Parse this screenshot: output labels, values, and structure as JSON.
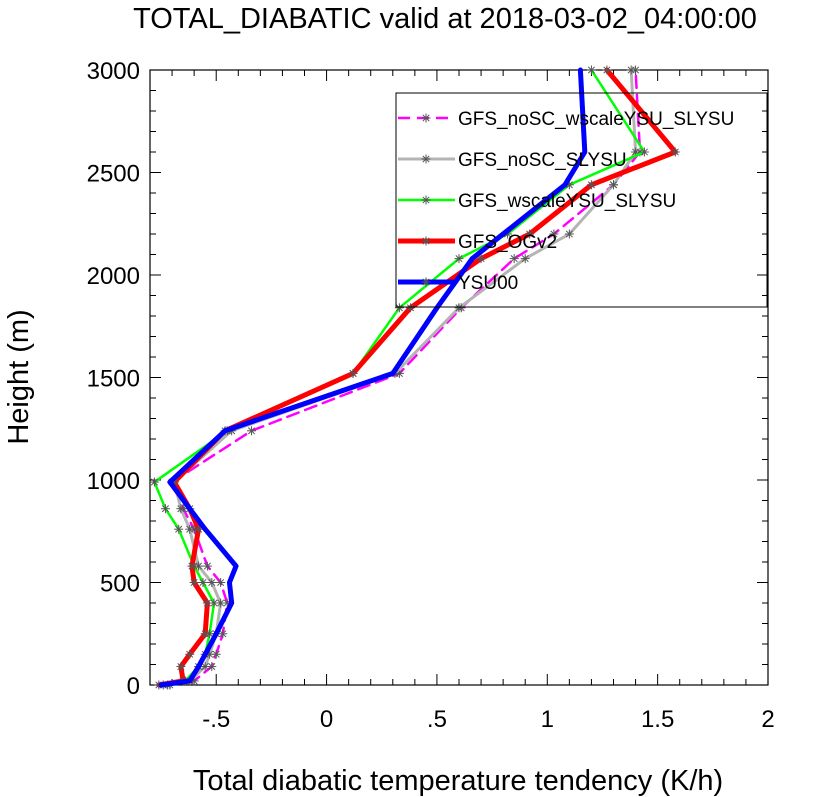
{
  "chart_data": {
    "type": "line",
    "title": "TOTAL_DIABATIC valid at 2018-03-02_04:00:00",
    "xlabel": "Total diabatic temperature tendency (K/h)",
    "ylabel": "Height (m)",
    "xlim": [
      -0.8,
      2.0
    ],
    "ylim": [
      0,
      3000
    ],
    "x_ticks": [
      -0.5,
      0,
      0.5,
      1,
      1.5,
      2
    ],
    "x_tick_labels": [
      "-.5",
      "0",
      ".5",
      "1",
      "1.5",
      "2"
    ],
    "y_ticks": [
      0,
      500,
      1000,
      1500,
      2000,
      2500,
      3000
    ],
    "y_tick_labels": [
      "0",
      "500",
      "1000",
      "1500",
      "2000",
      "2500",
      "3000"
    ],
    "grid": false,
    "legend_position": "top-right",
    "series": [
      {
        "name": "GFS_noSC_wscaleYSU_SLYSU",
        "color": "#ff00ff",
        "dash": "dashed",
        "marker": "asterisk",
        "points": [
          [
            -0.71,
            0
          ],
          [
            -0.6,
            20
          ],
          [
            -0.52,
            90
          ],
          [
            -0.5,
            150
          ],
          [
            -0.47,
            250
          ],
          [
            -0.45,
            400
          ],
          [
            -0.48,
            500
          ],
          [
            -0.54,
            580
          ],
          [
            -0.6,
            760
          ],
          [
            -0.65,
            860
          ],
          [
            -0.7,
            990
          ],
          [
            -0.34,
            1240
          ],
          [
            0.33,
            1520
          ],
          [
            0.61,
            1840
          ],
          [
            0.85,
            2080
          ],
          [
            1.03,
            2200
          ],
          [
            1.3,
            2440
          ],
          [
            1.42,
            2600
          ],
          [
            1.4,
            3000
          ]
        ]
      },
      {
        "name": "GFS_noSC_SLYSU",
        "color": "#b4b4b4",
        "dash": "solid",
        "marker": "asterisk",
        "points": [
          [
            -0.72,
            0
          ],
          [
            -0.62,
            20
          ],
          [
            -0.55,
            90
          ],
          [
            -0.53,
            150
          ],
          [
            -0.5,
            250
          ],
          [
            -0.48,
            400
          ],
          [
            -0.52,
            500
          ],
          [
            -0.58,
            580
          ],
          [
            -0.62,
            760
          ],
          [
            -0.66,
            860
          ],
          [
            -0.69,
            990
          ],
          [
            -0.43,
            1240
          ],
          [
            0.31,
            1520
          ],
          [
            0.6,
            1840
          ],
          [
            0.9,
            2080
          ],
          [
            1.1,
            2200
          ],
          [
            1.3,
            2440
          ],
          [
            1.4,
            2600
          ],
          [
            1.38,
            3000
          ]
        ]
      },
      {
        "name": "GFS_wscaleYSU_SLYSU",
        "color": "#00ff00",
        "dash": "solid",
        "marker": "asterisk",
        "points": [
          [
            -0.74,
            0
          ],
          [
            -0.64,
            20
          ],
          [
            -0.58,
            90
          ],
          [
            -0.55,
            150
          ],
          [
            -0.53,
            250
          ],
          [
            -0.51,
            400
          ],
          [
            -0.56,
            500
          ],
          [
            -0.6,
            580
          ],
          [
            -0.67,
            760
          ],
          [
            -0.73,
            860
          ],
          [
            -0.78,
            990
          ],
          [
            -0.45,
            1240
          ],
          [
            0.12,
            1520
          ],
          [
            0.33,
            1840
          ],
          [
            0.6,
            2080
          ],
          [
            0.82,
            2200
          ],
          [
            1.1,
            2440
          ],
          [
            1.44,
            2600
          ],
          [
            1.2,
            3000
          ]
        ]
      },
      {
        "name": "GFS_OGv2",
        "color": "#ff0000",
        "dash": "solid",
        "marker": "asterisk",
        "points": [
          [
            -0.76,
            0
          ],
          [
            -0.65,
            20
          ],
          [
            -0.66,
            90
          ],
          [
            -0.62,
            150
          ],
          [
            -0.55,
            250
          ],
          [
            -0.54,
            400
          ],
          [
            -0.6,
            500
          ],
          [
            -0.61,
            580
          ],
          [
            -0.58,
            760
          ],
          [
            -0.62,
            860
          ],
          [
            -0.69,
            990
          ],
          [
            -0.46,
            1240
          ],
          [
            0.12,
            1520
          ],
          [
            0.38,
            1840
          ],
          [
            0.7,
            2080
          ],
          [
            0.92,
            2200
          ],
          [
            1.2,
            2440
          ],
          [
            1.58,
            2600
          ],
          [
            1.27,
            3000
          ]
        ]
      },
      {
        "name": "YSU00",
        "color": "#0000ff",
        "dash": "solid",
        "marker": "none",
        "points": [
          [
            -0.75,
            0
          ],
          [
            -0.62,
            20
          ],
          [
            -0.58,
            90
          ],
          [
            -0.55,
            150
          ],
          [
            -0.5,
            250
          ],
          [
            -0.43,
            400
          ],
          [
            -0.44,
            500
          ],
          [
            -0.41,
            580
          ],
          [
            -0.55,
            760
          ],
          [
            -0.62,
            860
          ],
          [
            -0.71,
            990
          ],
          [
            -0.46,
            1240
          ],
          [
            0.3,
            1520
          ],
          [
            0.5,
            1840
          ],
          [
            0.66,
            2080
          ],
          [
            0.8,
            2200
          ],
          [
            1.08,
            2440
          ],
          [
            1.17,
            2600
          ],
          [
            1.15,
            3000
          ]
        ]
      }
    ]
  }
}
